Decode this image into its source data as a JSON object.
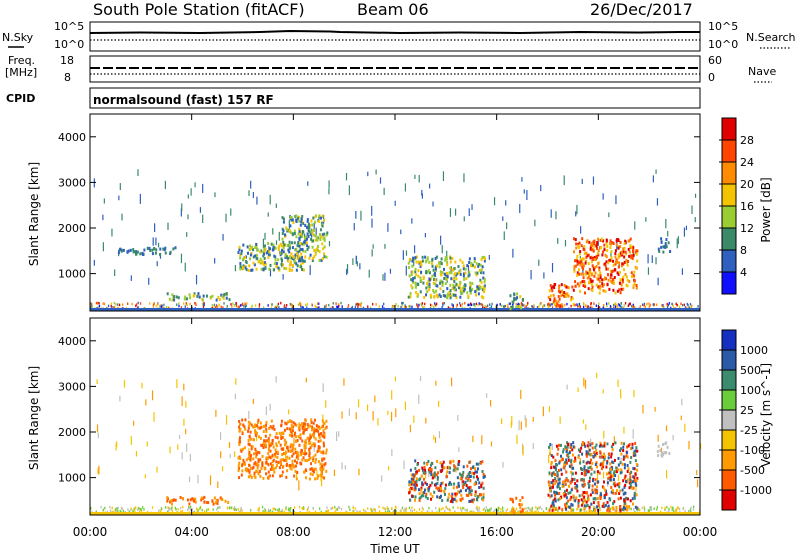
{
  "header": {
    "station": "South Pole Station (fitACF)",
    "beam": "Beam 06",
    "date": "26/Dec/2017"
  },
  "strips": {
    "nsky_label": "N.Sky",
    "nsky_ticks": [
      "10^5",
      "10^0"
    ],
    "nsearch_label": "N.Search",
    "nsearch_ticks": [
      "10^5",
      "10^0"
    ],
    "freq_label_1": "Freq.",
    "freq_label_2": "[MHz]",
    "freq_ticks": [
      "18",
      "8"
    ],
    "nave_label": "Nave",
    "nave_ticks": [
      "60",
      "0"
    ],
    "cpid_label": "CPID",
    "cpid_text": "normalsound (fast) 157 RF"
  },
  "chart_data": [
    {
      "type": "heatmap",
      "name": "power",
      "ylabel": "Slant Range [km]",
      "xlabel": "",
      "ylim": [
        180,
        4500
      ],
      "yticks": [
        "1000",
        "2000",
        "3000",
        "4000"
      ],
      "colorbar_label": "Power [dB]",
      "colorbar_ticks": [
        "4",
        "8",
        "12",
        "16",
        "20",
        "24",
        "28"
      ],
      "colorbar_colors": [
        "#1010ff",
        "#2f5fbf",
        "#3a8a6a",
        "#9acd32",
        "#f5c400",
        "#ff8c00",
        "#ff4500",
        "#e00000"
      ],
      "features": [
        {
          "x_hours": [
            1.0,
            3.5
          ],
          "y_km": [
            1450,
            1600
          ],
          "level": "low"
        },
        {
          "x_hours": [
            3.0,
            5.5
          ],
          "y_km": [
            450,
            600
          ],
          "level": "medium"
        },
        {
          "x_hours": [
            5.8,
            8.4
          ],
          "y_km": [
            1100,
            1700
          ],
          "level": "medium"
        },
        {
          "x_hours": [
            7.5,
            9.3
          ],
          "y_km": [
            1300,
            2300
          ],
          "level": "medium"
        },
        {
          "x_hours": [
            12.5,
            15.5
          ],
          "y_km": [
            500,
            1400
          ],
          "level": "medium"
        },
        {
          "x_hours": [
            16.5,
            17.0
          ],
          "y_km": [
            250,
            650
          ],
          "level": "medium"
        },
        {
          "x_hours": [
            18.0,
            19.0
          ],
          "y_km": [
            300,
            800
          ],
          "level": "high"
        },
        {
          "x_hours": [
            19.0,
            21.5
          ],
          "y_km": [
            600,
            1800
          ],
          "level": "high"
        },
        {
          "x_hours": [
            22.3,
            22.8
          ],
          "y_km": [
            1500,
            1800
          ],
          "level": "low"
        }
      ]
    },
    {
      "type": "heatmap",
      "name": "velocity",
      "ylabel": "Slant Range [km]",
      "xlabel": "Time UT",
      "ylim": [
        180,
        4500
      ],
      "yticks": [
        "1000",
        "2000",
        "3000",
        "4000"
      ],
      "x_ticks": [
        "00:00",
        "04:00",
        "08:00",
        "12:00",
        "16:00",
        "20:00",
        "00:00"
      ],
      "colorbar_label": "Velocity [m s^-1]",
      "colorbar_ticks": [
        "1000",
        "500",
        "100",
        "25",
        "-25",
        "-100",
        "-500",
        "-1000"
      ],
      "colorbar_colors": [
        "#1530c0",
        "#2a5aa8",
        "#3b8c6e",
        "#6acd3c",
        "#c0c0c0",
        "#f5c400",
        "#ff9a00",
        "#ff5a00",
        "#e00000"
      ],
      "features": [
        {
          "x_hours": [
            3.0,
            5.5
          ],
          "y_km": [
            450,
            600
          ],
          "level": "neg"
        },
        {
          "x_hours": [
            5.8,
            9.3
          ],
          "y_km": [
            1000,
            2300
          ],
          "level": "neg"
        },
        {
          "x_hours": [
            12.5,
            15.5
          ],
          "y_km": [
            500,
            1400
          ],
          "level": "mixed"
        },
        {
          "x_hours": [
            16.5,
            17.0
          ],
          "y_km": [
            250,
            600
          ],
          "level": "neg"
        },
        {
          "x_hours": [
            18.0,
            21.5
          ],
          "y_km": [
            300,
            1800
          ],
          "level": "mixed"
        },
        {
          "x_hours": [
            22.3,
            22.8
          ],
          "y_km": [
            1500,
            1800
          ],
          "level": "zero"
        }
      ]
    }
  ]
}
